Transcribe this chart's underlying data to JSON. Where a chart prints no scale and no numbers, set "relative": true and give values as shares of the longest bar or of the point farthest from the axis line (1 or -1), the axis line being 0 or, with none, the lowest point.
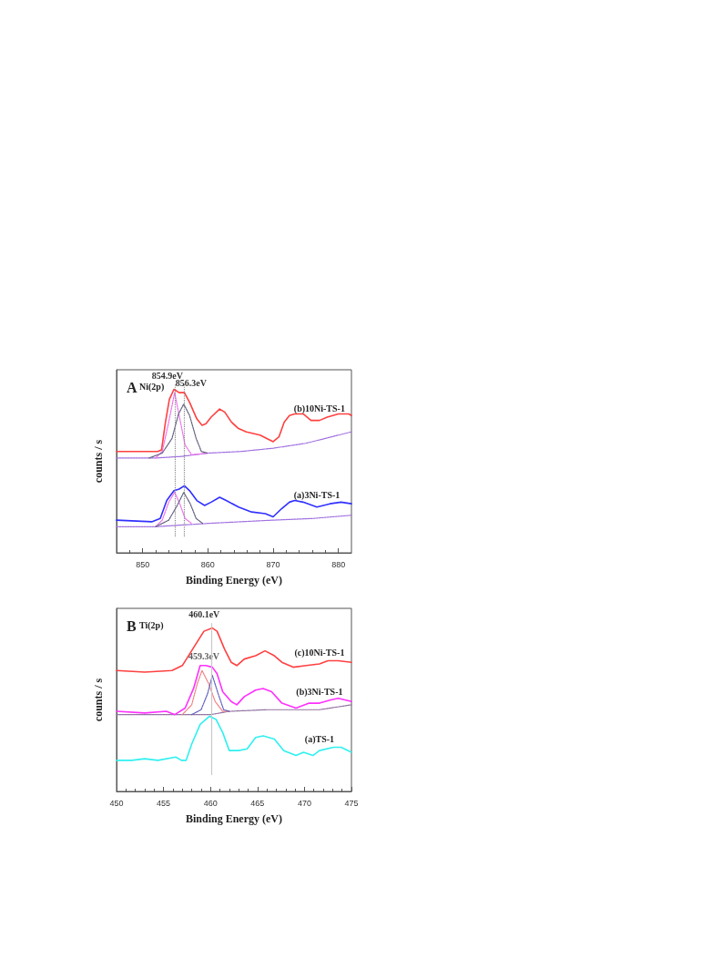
{
  "chart_data": [
    {
      "type": "line",
      "title": "A",
      "subtitle": "Ni(2p)",
      "xlabel": "Binding Energy (eV)",
      "ylabel": "counts / s",
      "relative": true,
      "xlim": [
        846,
        882
      ],
      "xticks": [
        850,
        860,
        870,
        880
      ],
      "grid": false,
      "legend": false,
      "marker": "none",
      "ref_lines": [
        {
          "axis": "x",
          "value": 854.9,
          "label": "854.9eV",
          "color": "#888888",
          "line_style": "dotted"
        },
        {
          "axis": "x",
          "value": 856.3,
          "label": "856.3eV",
          "color": "#888888",
          "line_style": "dotted"
        }
      ],
      "series": [
        {
          "name": "(b)10Ni-TS-1",
          "color": "#ff4040",
          "line_style": "solid",
          "x": [
            846,
            852.3,
            852.9,
            853.5,
            854.1,
            854.8,
            855.6,
            856.4,
            857.2,
            858.3,
            859.1,
            859.7,
            860.5,
            861.8,
            862.6,
            863.6,
            864.7,
            865.9,
            868,
            870,
            870.9,
            871.7,
            872.5,
            873.3,
            874.6,
            875.8,
            877.1,
            878.3,
            880,
            881.6,
            882
          ],
          "values": [
            0.62,
            0.62,
            0.63,
            0.8,
            0.94,
            1.0,
            0.98,
            0.98,
            0.92,
            0.82,
            0.78,
            0.79,
            0.83,
            0.88,
            0.86,
            0.8,
            0.76,
            0.74,
            0.72,
            0.68,
            0.71,
            0.8,
            0.84,
            0.85,
            0.85,
            0.81,
            0.81,
            0.83,
            0.85,
            0.85,
            0.84
          ]
        },
        {
          "color": "#a070e0",
          "line_style": "dotted",
          "x": [
            846,
            852,
            856,
            858,
            860,
            865,
            870,
            875,
            882
          ],
          "values": [
            0.58,
            0.58,
            0.59,
            0.6,
            0.61,
            0.62,
            0.64,
            0.67,
            0.74
          ]
        },
        {
          "color": "#ee70ee",
          "line_style": "dotted",
          "x": [
            852,
            853,
            854,
            854.9,
            855.7,
            856.5,
            857.5,
            860
          ],
          "values": [
            0.58,
            0.62,
            0.8,
            0.98,
            0.82,
            0.66,
            0.6,
            0.61
          ]
        },
        {
          "color": "#606080",
          "line_style": "dotted",
          "x": [
            851,
            853,
            854.5,
            855.5,
            856.3,
            857.2,
            858.2,
            859,
            860
          ],
          "values": [
            0.58,
            0.61,
            0.7,
            0.85,
            0.91,
            0.84,
            0.7,
            0.62,
            0.61
          ]
        },
        {
          "name": "(a)3Ni-TS-1",
          "color": "#3030ff",
          "line_style": "solid",
          "x": [
            846,
            851.4,
            852.7,
            853.7,
            854.8,
            855.6,
            856.4,
            857.2,
            858.3,
            859.5,
            860.5,
            861.8,
            862.8,
            864.7,
            866.7,
            868.8,
            870,
            871.3,
            872.5,
            873.3,
            874.6,
            876.7,
            878.7,
            880.4,
            882
          ],
          "values": [
            0.2,
            0.19,
            0.21,
            0.32,
            0.38,
            0.39,
            0.41,
            0.38,
            0.32,
            0.29,
            0.31,
            0.34,
            0.32,
            0.28,
            0.25,
            0.24,
            0.22,
            0.27,
            0.31,
            0.32,
            0.31,
            0.28,
            0.3,
            0.31,
            0.3
          ]
        },
        {
          "color": "#a070e0",
          "line_style": "dotted",
          "x": [
            846,
            852,
            860,
            870,
            876,
            882
          ],
          "values": [
            0.16,
            0.16,
            0.18,
            0.2,
            0.21,
            0.23
          ]
        },
        {
          "color": "#ee70ee",
          "line_style": "dotted",
          "x": [
            852,
            853,
            854,
            854.9,
            855.7,
            856.5,
            857.5
          ],
          "values": [
            0.16,
            0.2,
            0.31,
            0.37,
            0.3,
            0.21,
            0.18
          ]
        },
        {
          "color": "#606080",
          "line_style": "dotted",
          "x": [
            852,
            854,
            855.3,
            856.3,
            857.3,
            858.2,
            859.2
          ],
          "values": [
            0.16,
            0.2,
            0.29,
            0.37,
            0.3,
            0.21,
            0.18
          ]
        }
      ]
    },
    {
      "type": "line",
      "title": "B",
      "subtitle": "Ti(2p)",
      "xlabel": "Binding Energy (eV)",
      "ylabel": "counts / s",
      "relative": true,
      "xlim": [
        450,
        475
      ],
      "xticks": [
        450,
        455,
        460,
        465,
        470,
        475
      ],
      "grid": false,
      "legend": false,
      "marker": "none",
      "ref_lines": [
        {
          "axis": "x",
          "value": 460.1,
          "label": "460.1eV",
          "color": "#c8c8c8",
          "line_style": "solid"
        }
      ],
      "annotations": [
        {
          "text": "459.3eV",
          "x": 459.3,
          "y": 0.77
        }
      ],
      "series": [
        {
          "name": "(c)10Ni-TS-1",
          "color": "#ff4040",
          "line_style": "solid",
          "x": [
            450,
            453,
            455.9,
            457,
            458.2,
            459.3,
            460.2,
            460.7,
            461.5,
            462.2,
            462.8,
            463.6,
            464.8,
            465.8,
            466.8,
            467.6,
            468.8,
            470.2,
            471.6,
            472.5,
            473.6,
            475
          ],
          "values": [
            0.74,
            0.73,
            0.74,
            0.77,
            0.88,
            0.98,
            1.0,
            0.98,
            0.87,
            0.79,
            0.77,
            0.81,
            0.83,
            0.86,
            0.83,
            0.79,
            0.76,
            0.77,
            0.78,
            0.8,
            0.8,
            0.79
          ]
        },
        {
          "name": "(b)3Ni-TS-1",
          "color": "#ff30ff",
          "line_style": "solid",
          "x": [
            450,
            453,
            455.3,
            456.2,
            457.3,
            458.2,
            458.9,
            459.5,
            460.2,
            460.7,
            461.3,
            462.2,
            462.8,
            463.6,
            464.8,
            465.6,
            466.5,
            467.6,
            469.1,
            470.5,
            471.6,
            472.8,
            473.6,
            475
          ],
          "values": [
            0.49,
            0.48,
            0.49,
            0.47,
            0.51,
            0.63,
            0.77,
            0.77,
            0.76,
            0.72,
            0.61,
            0.55,
            0.53,
            0.58,
            0.62,
            0.63,
            0.61,
            0.54,
            0.51,
            0.54,
            0.54,
            0.56,
            0.57,
            0.55
          ]
        },
        {
          "color": "#9070a0",
          "line_style": "dotted",
          "x": [
            450,
            460,
            462,
            466,
            471.6,
            475
          ],
          "values": [
            0.47,
            0.47,
            0.49,
            0.5,
            0.5,
            0.53
          ]
        },
        {
          "color": "#f08080",
          "line_style": "dotted",
          "x": [
            457,
            458,
            458.6,
            459.1,
            459.8,
            460.5,
            461.3,
            462
          ],
          "values": [
            0.47,
            0.53,
            0.66,
            0.74,
            0.66,
            0.55,
            0.49,
            0.49
          ]
        },
        {
          "color": "#6060c0",
          "line_style": "dotted",
          "x": [
            458,
            459,
            459.7,
            460.2,
            460.8,
            461.4,
            462
          ],
          "values": [
            0.47,
            0.5,
            0.6,
            0.71,
            0.6,
            0.5,
            0.49
          ]
        },
        {
          "name": "(a)TS-1",
          "color": "#30f0f0",
          "line_style": "solid",
          "x": [
            450,
            451.6,
            453,
            454.4,
            456.3,
            456.9,
            457.4,
            458,
            458.9,
            459.9,
            460.6,
            461.3,
            462,
            463,
            463.9,
            464.8,
            465.6,
            466.8,
            467.8,
            469.1,
            469.9,
            470.9,
            471.6,
            473.1,
            473.9,
            475
          ],
          "values": [
            0.19,
            0.19,
            0.2,
            0.19,
            0.21,
            0.19,
            0.19,
            0.29,
            0.41,
            0.46,
            0.44,
            0.36,
            0.25,
            0.25,
            0.26,
            0.33,
            0.34,
            0.32,
            0.25,
            0.22,
            0.24,
            0.22,
            0.25,
            0.27,
            0.27,
            0.24
          ]
        }
      ]
    }
  ]
}
